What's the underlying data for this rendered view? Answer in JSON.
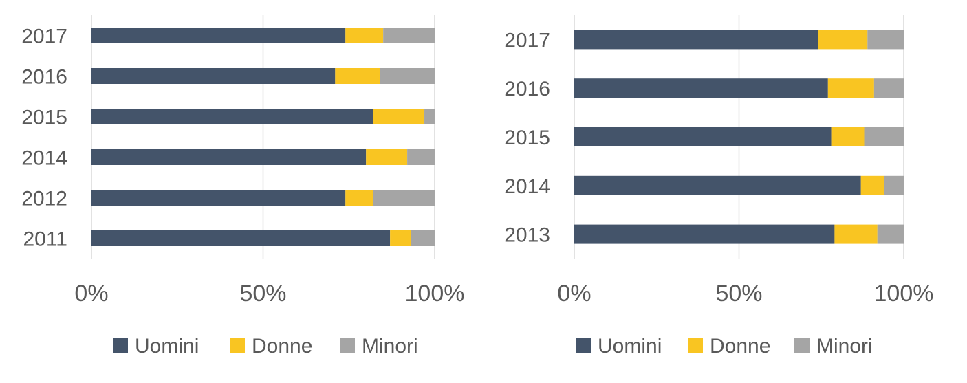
{
  "chart_data": [
    {
      "type": "bar",
      "orientation": "horizontal",
      "stacked": "percent",
      "categories": [
        "2017",
        "2016",
        "2015",
        "2014",
        "2012",
        "2011"
      ],
      "series": [
        {
          "name": "Uomini",
          "color": "#44546a",
          "values": [
            74,
            71,
            82,
            80,
            74,
            87
          ]
        },
        {
          "name": "Donne",
          "color": "#f9c522",
          "values": [
            11,
            13,
            15,
            12,
            8,
            6
          ]
        },
        {
          "name": "Minori",
          "color": "#a5a5a5",
          "values": [
            15,
            16,
            3,
            8,
            18,
            7
          ]
        }
      ],
      "x_ticks": [
        "0%",
        "50%",
        "100%"
      ],
      "xlim": [
        0,
        100
      ],
      "grid": true,
      "legend_position": "bottom"
    },
    {
      "type": "bar",
      "orientation": "horizontal",
      "stacked": "percent",
      "categories": [
        "2017",
        "2016",
        "2015",
        "2014",
        "2013"
      ],
      "series": [
        {
          "name": "Uomini",
          "color": "#44546a",
          "values": [
            74,
            77,
            78,
            87,
            79
          ]
        },
        {
          "name": "Donne",
          "color": "#f9c522",
          "values": [
            15,
            14,
            10,
            7,
            13
          ]
        },
        {
          "name": "Minori",
          "color": "#a5a5a5",
          "values": [
            11,
            9,
            12,
            6,
            8
          ]
        }
      ],
      "x_ticks": [
        "0%",
        "50%",
        "100%"
      ],
      "xlim": [
        0,
        100
      ],
      "grid": true,
      "legend_position": "bottom"
    }
  ]
}
